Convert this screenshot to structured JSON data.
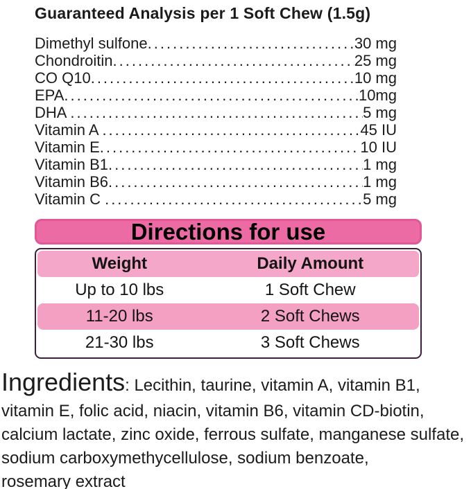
{
  "guaranteed_analysis": {
    "title": "Guaranteed Analysis per 1 Soft Chew (1.5g)",
    "items": [
      {
        "label": "Dimethyl sulfone",
        "value": "30 mg"
      },
      {
        "label": "Chondroitin",
        "value": "25 mg"
      },
      {
        "label": "CO Q10",
        "value": "10 mg"
      },
      {
        "label": "EPA",
        "value": "10mg"
      },
      {
        "label": "DHA ",
        "value": "5 mg"
      },
      {
        "label": "Vitamin A ",
        "value": "45 IU"
      },
      {
        "label": "Vitamin E",
        "value": "10 IU"
      },
      {
        "label": "Vitamin B1",
        "value": "1 mg"
      },
      {
        "label": "Vitamin B6",
        "value": "1 mg"
      },
      {
        "label": "Vitamin C ",
        "value": "5 mg"
      }
    ]
  },
  "directions": {
    "banner_label": "Directions for use",
    "table": {
      "headers": {
        "weight": "Weight",
        "daily_amount": "Daily Amount"
      },
      "rows": [
        {
          "weight": "Up to 10 lbs",
          "daily_amount": "1 Soft Chew",
          "highlighted": false
        },
        {
          "weight": "11-20 lbs",
          "daily_amount": "2 Soft Chews",
          "highlighted": true
        },
        {
          "weight": "21-30 lbs",
          "daily_amount": "3 Soft Chews",
          "highlighted": false
        }
      ]
    }
  },
  "ingredients": {
    "heading": "Ingredients",
    "line1_rest": ": Lecithin, taurine, vitamin A, vitamin B1,",
    "lines": [
      "vitamin E, folic acid, niacin, vitamin B6, vitamin CD-biotin,",
      "calcium lactate, zinc oxide, ferrous sulfate, manganese sulfate,",
      "sodium carboxymethycellulose, sodium benzoate,",
      "rosemary extract"
    ]
  },
  "colors": {
    "banner_fill": "#ec6ba4",
    "banner_border": "#e25795",
    "table_border": "#3e1e3e",
    "table_header_fill": "#f5a7ca",
    "highlight_row_fill": "#f4a0c3",
    "text": "#1b1b1b"
  }
}
